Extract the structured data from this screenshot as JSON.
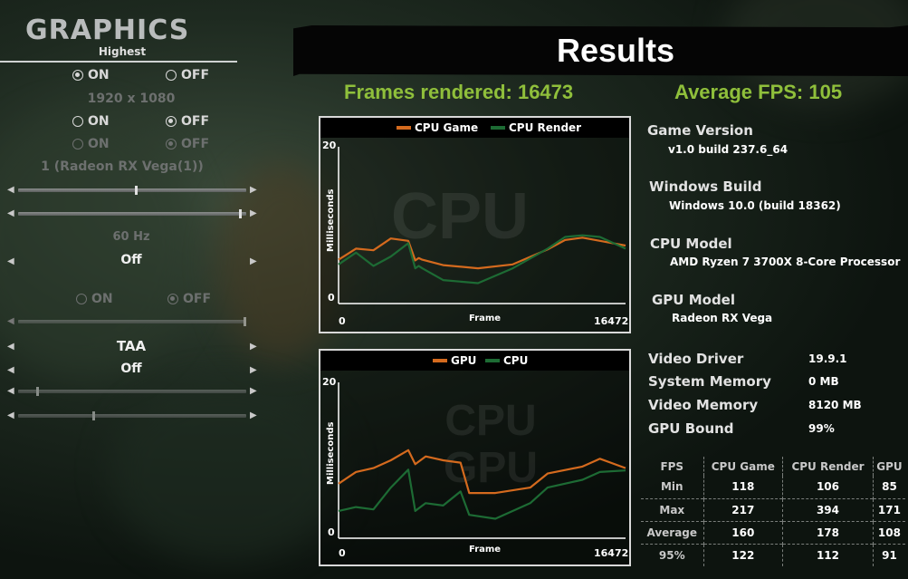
{
  "colors": {
    "accent_green": "#8fbf3b",
    "series_orange": "#d46a1e",
    "series_green": "#1d6b34",
    "background": "#0d140f"
  },
  "left_panel": {
    "title": "GRAPHICS",
    "preset_value": "Highest",
    "toggle1": {
      "on_label": "ON",
      "off_label": "OFF",
      "selected": "ON"
    },
    "resolution": "1920 x 1080",
    "toggle2": {
      "on_label": "ON",
      "off_label": "OFF",
      "selected": "OFF"
    },
    "toggle3": {
      "on_label": "ON",
      "off_label": "OFF",
      "selected": "OFF"
    },
    "gpu_select": "1 (Radeon RX Vega(1))",
    "slider1_level": 0.52,
    "slider2_level": 0.98,
    "refresh_rate": "60 Hz",
    "vsync_value": "Off",
    "toggle4": {
      "on_label": "ON",
      "off_label": "OFF",
      "selected": "OFF"
    },
    "slider3_level": 1.0,
    "anti_aliasing_value": "TAA",
    "option_value": "Off",
    "slider4_level": 0.08,
    "slider5_level": 0.33
  },
  "results": {
    "title": "Results",
    "frames_rendered": "Frames rendered: 16473",
    "average_fps": "Average FPS: 105",
    "info": [
      {
        "label": "Game Version",
        "value": "v1.0 build 237.6_64"
      },
      {
        "label": "Windows Build",
        "value": "Windows 10.0 (build 18362)"
      },
      {
        "label": "CPU Model",
        "value": "AMD Ryzen 7 3700X 8-Core Processor"
      },
      {
        "label": "GPU Model",
        "value": "Radeon RX Vega"
      }
    ],
    "specs": [
      {
        "label": "Video Driver",
        "value": "19.9.1"
      },
      {
        "label": "System Memory",
        "value": "0 MB"
      },
      {
        "label": "Video Memory",
        "value": "8120 MB"
      },
      {
        "label": "GPU Bound",
        "value": "99%"
      }
    ],
    "stats_table": {
      "headers": [
        "FPS",
        "CPU Game",
        "CPU Render",
        "GPU"
      ],
      "rows": [
        [
          "Min",
          "118",
          "106",
          "85"
        ],
        [
          "Max",
          "217",
          "394",
          "171"
        ],
        [
          "Average",
          "160",
          "178",
          "108"
        ],
        [
          "95%",
          "122",
          "112",
          "91"
        ]
      ]
    }
  },
  "chart_data": [
    {
      "type": "line",
      "watermark": "CPU",
      "xlabel": "Frame",
      "ylabel": "Milliseconds",
      "xlim": [
        0,
        16472
      ],
      "ylim": [
        0,
        20
      ],
      "x_ticks": [
        "0",
        "16472"
      ],
      "y_ticks": [
        "0",
        "20"
      ],
      "legend_position": "top",
      "x": [
        0,
        1000,
        2000,
        3000,
        4000,
        4400,
        4600,
        4800,
        6000,
        8000,
        10000,
        12000,
        13000,
        14000,
        15000,
        16472
      ],
      "series": [
        {
          "name": "CPU Game",
          "color": "#d46a1e",
          "values": [
            5.6,
            7.0,
            6.8,
            8.3,
            8.0,
            5.5,
            5.8,
            5.6,
            4.9,
            4.5,
            5.0,
            6.9,
            8.1,
            8.4,
            8.0,
            7.4
          ]
        },
        {
          "name": "CPU Render",
          "color": "#1d6b34",
          "values": [
            5.0,
            6.5,
            4.8,
            6.0,
            7.7,
            4.5,
            4.8,
            4.5,
            3.0,
            2.6,
            4.5,
            7.0,
            8.5,
            8.7,
            8.5,
            7.0
          ]
        }
      ]
    },
    {
      "type": "line",
      "watermark": "CPU GPU",
      "xlabel": "Frame",
      "ylabel": "Milliseconds",
      "xlim": [
        0,
        16472
      ],
      "ylim": [
        0,
        20
      ],
      "x_ticks": [
        "0",
        "16472"
      ],
      "y_ticks": [
        "0",
        "20"
      ],
      "legend_position": "top",
      "x": [
        0,
        1000,
        2000,
        3000,
        4000,
        4400,
        5000,
        6000,
        7000,
        7500,
        9000,
        11000,
        12000,
        14000,
        15000,
        16472
      ],
      "series": [
        {
          "name": "GPU",
          "color": "#d46a1e",
          "values": [
            7.0,
            8.5,
            9.0,
            10.0,
            11.3,
            9.5,
            10.5,
            10.0,
            9.7,
            5.8,
            5.8,
            6.5,
            8.3,
            9.2,
            10.2,
            9.0
          ]
        },
        {
          "name": "CPU",
          "color": "#1d6b34",
          "values": [
            3.5,
            4.0,
            3.7,
            6.5,
            8.8,
            3.5,
            4.5,
            4.2,
            6.0,
            3.0,
            2.5,
            4.5,
            6.5,
            7.5,
            8.5,
            8.7
          ]
        }
      ]
    }
  ]
}
